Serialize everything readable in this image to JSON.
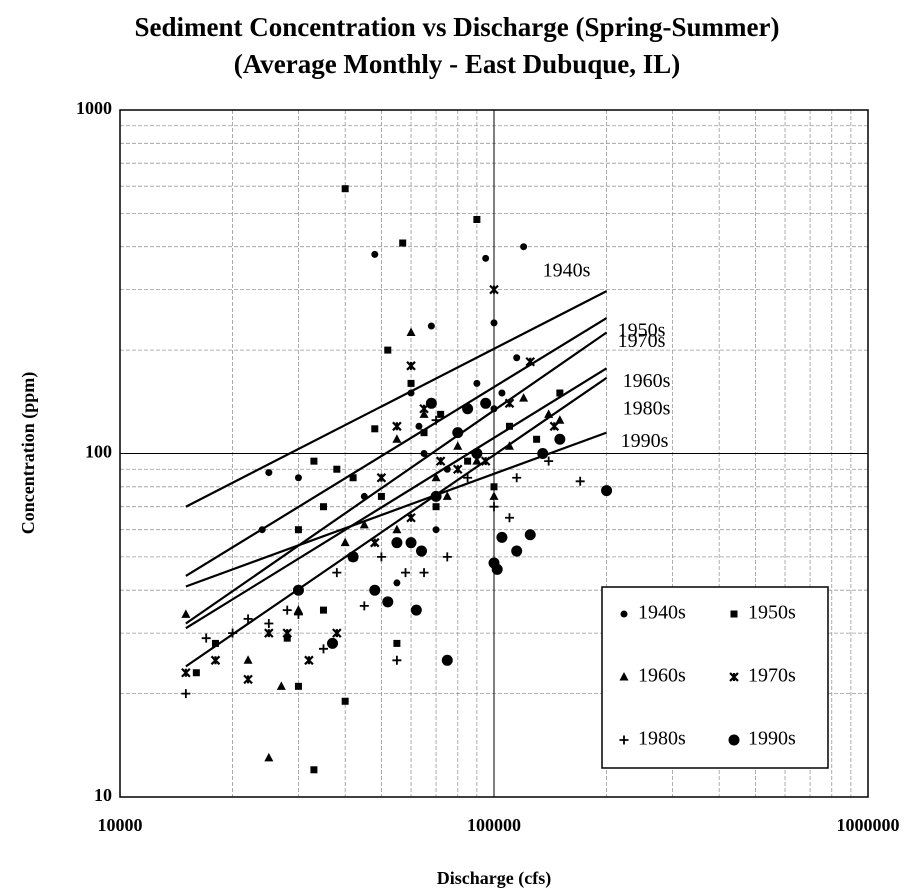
{
  "chart_data": {
    "type": "scatter",
    "title": "Sediment Concentration vs Discharge (Spring-Summer)",
    "subtitle": "(Average Monthly - East Dubuque, IL)",
    "x_label": "Discharge (cfs)",
    "y_label": "Concentration (ppm)",
    "xscale": "log",
    "yscale": "log",
    "xlim": [
      10000,
      1000000
    ],
    "ylim": [
      10,
      1000
    ],
    "xticks": [
      10000,
      100000,
      1000000
    ],
    "yticks": [
      10,
      100,
      1000
    ],
    "xminorticks": [
      20000,
      30000,
      40000,
      50000,
      60000,
      70000,
      80000,
      90000,
      200000,
      300000,
      400000,
      500000,
      600000,
      700000,
      800000,
      900000
    ],
    "yminorticks": [
      20,
      30,
      40,
      50,
      60,
      70,
      80,
      90,
      200,
      300,
      400,
      500,
      600,
      700,
      800,
      900
    ],
    "grid": true,
    "legend": "lower right",
    "series": [
      {
        "name": "1940s",
        "color": "#000000",
        "marker": "circle",
        "x": [
          25000,
          30000,
          24000,
          48000,
          95000,
          120000,
          68000,
          60000,
          63000,
          75000,
          100000,
          105000,
          115000,
          90000,
          65000,
          55000,
          45000,
          80000,
          100000,
          70000
        ],
        "values": [
          88,
          85,
          60,
          380,
          370,
          400,
          235,
          150,
          120,
          90,
          240,
          150,
          190,
          160,
          100,
          42,
          75,
          115,
          135,
          60
        ]
      },
      {
        "name": "1950s",
        "color": "#000000",
        "marker": "square",
        "x": [
          40000,
          57000,
          90000,
          52000,
          60000,
          48000,
          35000,
          33000,
          38000,
          42000,
          50000,
          30000,
          28000,
          30000,
          35000,
          40000,
          33000,
          16000,
          18000,
          55000,
          65000,
          72000,
          85000,
          110000,
          150000,
          130000,
          100000,
          70000
        ],
        "values": [
          590,
          410,
          480,
          200,
          160,
          118,
          70,
          95,
          90,
          85,
          75,
          60,
          29,
          21,
          35,
          19,
          12,
          23,
          28,
          28,
          115,
          130,
          95,
          120,
          150,
          110,
          80,
          70
        ]
      },
      {
        "name": "1960s",
        "color": "#000000",
        "marker": "triangle",
        "x": [
          15000,
          22000,
          25000,
          27000,
          30000,
          40000,
          45000,
          55000,
          60000,
          65000,
          70000,
          80000,
          90000,
          110000,
          140000,
          55000,
          75000,
          100000,
          120000,
          150000
        ],
        "values": [
          34,
          25,
          13,
          21,
          35,
          55,
          62,
          110,
          225,
          130,
          85,
          105,
          95,
          105,
          130,
          60,
          75,
          75,
          145,
          125
        ]
      },
      {
        "name": "1970s",
        "color": "#000000",
        "marker": "x",
        "x": [
          15000,
          18000,
          22000,
          25000,
          28000,
          32000,
          38000,
          42000,
          48000,
          55000,
          60000,
          65000,
          72000,
          80000,
          95000,
          100000,
          110000,
          125000,
          145000,
          60000,
          50000
        ],
        "values": [
          23,
          25,
          22,
          30,
          30,
          25,
          30,
          50,
          55,
          120,
          180,
          135,
          95,
          90,
          95,
          300,
          140,
          185,
          120,
          65,
          85
        ]
      },
      {
        "name": "1980s",
        "color": "#000000",
        "marker": "plus",
        "x": [
          15000,
          17000,
          20000,
          22000,
          25000,
          28000,
          30000,
          35000,
          38000,
          45000,
          50000,
          55000,
          58000,
          65000,
          75000,
          85000,
          100000,
          110000,
          115000,
          140000,
          170000,
          60000,
          70000
        ],
        "values": [
          20,
          29,
          30,
          33,
          32,
          35,
          34,
          27,
          45,
          36,
          50,
          25,
          45,
          45,
          50,
          85,
          70,
          65,
          85,
          95,
          83,
          55,
          125
        ]
      },
      {
        "name": "1990s",
        "color": "#000000",
        "marker": "circle-large",
        "x": [
          30000,
          37000,
          42000,
          48000,
          52000,
          55000,
          60000,
          62000,
          64000,
          70000,
          75000,
          80000,
          85000,
          95000,
          100000,
          102000,
          105000,
          115000,
          125000,
          135000,
          150000,
          200000,
          90000,
          68000
        ],
        "values": [
          40,
          28,
          50,
          40,
          37,
          55,
          55,
          35,
          52,
          75,
          25,
          115,
          135,
          140,
          48,
          46,
          57,
          52,
          58,
          100,
          110,
          78,
          100,
          140
        ]
      }
    ],
    "trendlines": [
      {
        "name": "1940s",
        "x": [
          15000,
          200000
        ],
        "values": [
          70,
          297
        ]
      },
      {
        "name": "1950s",
        "x": [
          15000,
          200000
        ],
        "values": [
          44,
          248
        ]
      },
      {
        "name": "1970s",
        "x": [
          15000,
          200000
        ],
        "values": [
          32,
          225
        ]
      },
      {
        "name": "1960s",
        "x": [
          15000,
          200000
        ],
        "values": [
          31,
          177
        ]
      },
      {
        "name": "1980s",
        "x": [
          15000,
          200000
        ],
        "values": [
          24,
          166
        ]
      },
      {
        "name": "1990s",
        "x": [
          15000,
          200000
        ],
        "values": [
          41,
          115
        ]
      }
    ]
  }
}
